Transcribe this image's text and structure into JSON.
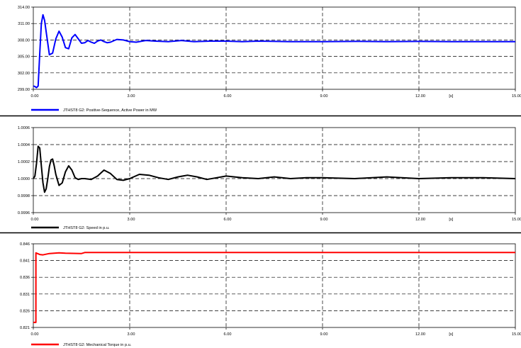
{
  "chart_data": [
    {
      "type": "line",
      "xlim": [
        0,
        15
      ],
      "ylim": [
        299.0,
        314.0
      ],
      "x_ticks": [
        0,
        3,
        6,
        9,
        12,
        15
      ],
      "x_tick_labels": [
        "0.00",
        "3.00",
        "6.00",
        "9.00",
        "12.00",
        "15.00"
      ],
      "x_unit_label": "[s]",
      "y_ticks": [
        299.0,
        302.0,
        305.0,
        308.0,
        311.0,
        314.0
      ],
      "y_tick_labels": [
        "299.00",
        "302.00",
        "305.00",
        "308.00",
        "311.00",
        "314.00"
      ],
      "grid": true,
      "legend_position": "bottom-left",
      "series": [
        {
          "name": "JTHST8 G2: Positive-Sequence, Active Power in MW",
          "color": "#0000ff",
          "x": [
            0,
            0.05,
            0.1,
            0.15,
            0.2,
            0.25,
            0.3,
            0.35,
            0.4,
            0.5,
            0.6,
            0.7,
            0.8,
            0.9,
            1.0,
            1.1,
            1.2,
            1.3,
            1.4,
            1.5,
            1.6,
            1.7,
            1.8,
            1.9,
            2.0,
            2.1,
            2.2,
            2.3,
            2.4,
            2.6,
            2.8,
            3.0,
            3.2,
            3.5,
            3.8,
            4.2,
            4.6,
            5.0,
            5.5,
            6.0,
            6.5,
            7.0,
            8.0,
            9.0,
            10.0,
            11.0,
            12.0,
            13.0,
            14.0,
            15.0
          ],
          "y": [
            299.6,
            299.5,
            299.3,
            299.6,
            305.5,
            311.0,
            312.6,
            311.6,
            309.5,
            305.3,
            305.6,
            308.2,
            309.6,
            308.5,
            306.6,
            306.4,
            308.4,
            309.0,
            308.2,
            307.4,
            307.5,
            307.9,
            307.6,
            307.4,
            307.8,
            308.0,
            307.7,
            307.5,
            307.6,
            308.1,
            308.0,
            307.7,
            307.6,
            307.9,
            307.8,
            307.7,
            307.9,
            307.7,
            307.8,
            307.8,
            307.7,
            307.8,
            307.7,
            307.7,
            307.75,
            307.7,
            307.75,
            307.7,
            307.7,
            307.7
          ]
        }
      ]
    },
    {
      "type": "line",
      "xlim": [
        0,
        15
      ],
      "ylim": [
        0.9996,
        1.0006
      ],
      "x_ticks": [
        0,
        3,
        6,
        9,
        12,
        15
      ],
      "x_tick_labels": [
        "0.00",
        "3.00",
        "6.00",
        "9.00",
        "12.00",
        "15.00"
      ],
      "x_unit_label": "[s]",
      "y_ticks": [
        0.9996,
        0.9998,
        1.0,
        1.0002,
        1.0004,
        1.0006
      ],
      "y_tick_labels": [
        "0.9996",
        "0.9998",
        "1.0000",
        "1.0002",
        "1.0004",
        "1.0006"
      ],
      "grid": true,
      "legend_position": "bottom-left",
      "series": [
        {
          "name": "JTHST8 G2: Speed in p.u.",
          "color": "#000000",
          "x": [
            0,
            0.05,
            0.1,
            0.15,
            0.2,
            0.25,
            0.3,
            0.35,
            0.4,
            0.45,
            0.5,
            0.55,
            0.6,
            0.65,
            0.7,
            0.8,
            0.9,
            1.0,
            1.1,
            1.2,
            1.3,
            1.4,
            1.5,
            1.6,
            1.8,
            2.0,
            2.2,
            2.4,
            2.6,
            2.8,
            3.0,
            3.3,
            3.6,
            3.9,
            4.2,
            4.5,
            4.8,
            5.1,
            5.4,
            5.7,
            6.0,
            6.5,
            7.0,
            7.5,
            8.0,
            8.5,
            9.0,
            10.0,
            11.0,
            12.0,
            13.0,
            14.0,
            15.0
          ],
          "y": [
            1.0,
            1.00003,
            1.00018,
            1.00038,
            1.00036,
            1.00015,
            0.99995,
            0.99984,
            0.99988,
            1.0,
            1.00014,
            1.00022,
            1.00023,
            1.00015,
            1.00005,
            0.99992,
            0.99995,
            1.00008,
            1.00015,
            1.0001,
            1.00001,
            0.99999,
            1.0,
            1.0,
            0.99999,
            1.00003,
            1.0001,
            1.00006,
            0.99999,
            0.99998,
            1.0,
            1.00005,
            1.00004,
            1.00001,
            0.99999,
            1.00002,
            1.00004,
            1.00002,
            0.99999,
            1.00001,
            1.00003,
            1.00001,
            1.0,
            1.00002,
            1.0,
            1.00001,
            1.00001,
            1.0,
            1.00002,
            1.0,
            1.00001,
            1.00001,
            1.0
          ]
        }
      ]
    },
    {
      "type": "line",
      "xlim": [
        0,
        15
      ],
      "ylim": [
        0.821,
        0.846
      ],
      "x_ticks": [
        0,
        3,
        6,
        9,
        12,
        15
      ],
      "x_tick_labels": [
        "0.00",
        "3.00",
        "6.00",
        "9.00",
        "12.00",
        "15.00"
      ],
      "x_unit_label": "[s]",
      "y_ticks": [
        0.821,
        0.826,
        0.831,
        0.836,
        0.841,
        0.846
      ],
      "y_tick_labels": [
        "0.821",
        "0.826",
        "0.831",
        "0.836",
        "0.841",
        "0.846"
      ],
      "grid": true,
      "legend_position": "bottom-left",
      "series": [
        {
          "name": "JTHST8 G2: Mechanical Torque in p.u.",
          "color": "#ff0000",
          "x": [
            0,
            0.08,
            0.081,
            0.1,
            0.2,
            0.3,
            0.5,
            0.8,
            1.0,
            1.5,
            1.6,
            2.0,
            3.0,
            5.0,
            8.0,
            10.0,
            12.0,
            15.0
          ],
          "y": [
            0.8225,
            0.8225,
            0.8433,
            0.8432,
            0.8428,
            0.8427,
            0.8431,
            0.8433,
            0.8432,
            0.8431,
            0.8434,
            0.8434,
            0.8434,
            0.8434,
            0.8434,
            0.8434,
            0.8434,
            0.8434
          ]
        }
      ]
    }
  ]
}
